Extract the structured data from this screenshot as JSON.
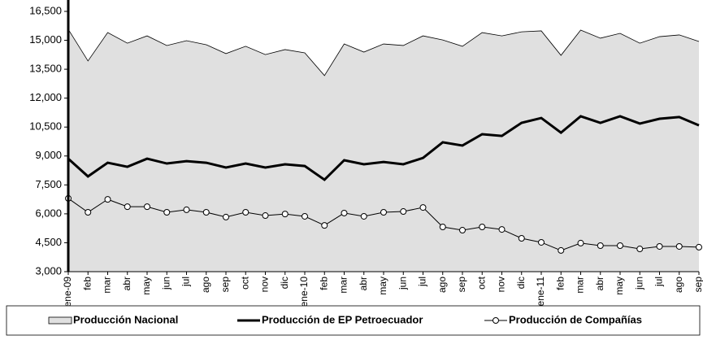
{
  "chart_data": {
    "type": "line",
    "categories": [
      "ene-09",
      "feb",
      "mar",
      "abr",
      "may",
      "jun",
      "jul",
      "ago",
      "sep",
      "oct",
      "nov",
      "dic",
      "ene-10",
      "feb",
      "mar",
      "abr",
      "may",
      "jun",
      "jul",
      "ago",
      "sep",
      "oct",
      "nov",
      "dic",
      "ene-11",
      "feb",
      "mar",
      "abr",
      "may",
      "jun",
      "jul",
      "ago",
      "sep"
    ],
    "series": [
      {
        "name": "Producción Nacional",
        "color": "#e0e0e0",
        "style": "area",
        "values": [
          15570,
          13930,
          15400,
          14850,
          15230,
          14730,
          14980,
          14770,
          14310,
          14690,
          14260,
          14520,
          14350,
          13170,
          14810,
          14390,
          14810,
          14730,
          15230,
          15020,
          14690,
          15400,
          15230,
          15440,
          15490,
          14220,
          15530,
          15110,
          15360,
          14850,
          15190,
          15280,
          14940
        ]
      },
      {
        "name": "Producción de EP Petroecuador",
        "color": "#000000",
        "style": "line",
        "values": [
          8860,
          7940,
          8650,
          8440,
          8860,
          8610,
          8730,
          8650,
          8400,
          8610,
          8400,
          8570,
          8480,
          7770,
          8780,
          8570,
          8690,
          8570,
          8900,
          9710,
          9540,
          10130,
          10040,
          10720,
          10970,
          10210,
          11060,
          10720,
          11060,
          10680,
          10930,
          11020,
          10590
        ]
      },
      {
        "name": "Producción de Compañías",
        "color": "#000000",
        "style": "marker",
        "values": [
          6800,
          6080,
          6750,
          6370,
          6370,
          6080,
          6210,
          6080,
          5830,
          6080,
          5910,
          5990,
          5870,
          5400,
          6040,
          5870,
          6080,
          6120,
          6330,
          5320,
          5150,
          5320,
          5190,
          4730,
          4520,
          4100,
          4480,
          4350,
          4350,
          4180,
          4310,
          4310,
          4270
        ]
      }
    ],
    "ylim": [
      3000,
      16500
    ],
    "yticks": [
      {
        "value": 3000,
        "label": "3,000"
      },
      {
        "value": 4500,
        "label": "4,500"
      },
      {
        "value": 6000,
        "label": "6,000"
      },
      {
        "value": 7500,
        "label": "7,500"
      },
      {
        "value": 9000,
        "label": "9,000"
      },
      {
        "value": 10500,
        "label": "10,500"
      },
      {
        "value": 12000,
        "label": "12,000"
      },
      {
        "value": 13500,
        "label": "13,500"
      },
      {
        "value": 15000,
        "label": "15,000"
      },
      {
        "value": 16500,
        "label": "16,500"
      }
    ],
    "grid": false,
    "legend": "bottom"
  }
}
